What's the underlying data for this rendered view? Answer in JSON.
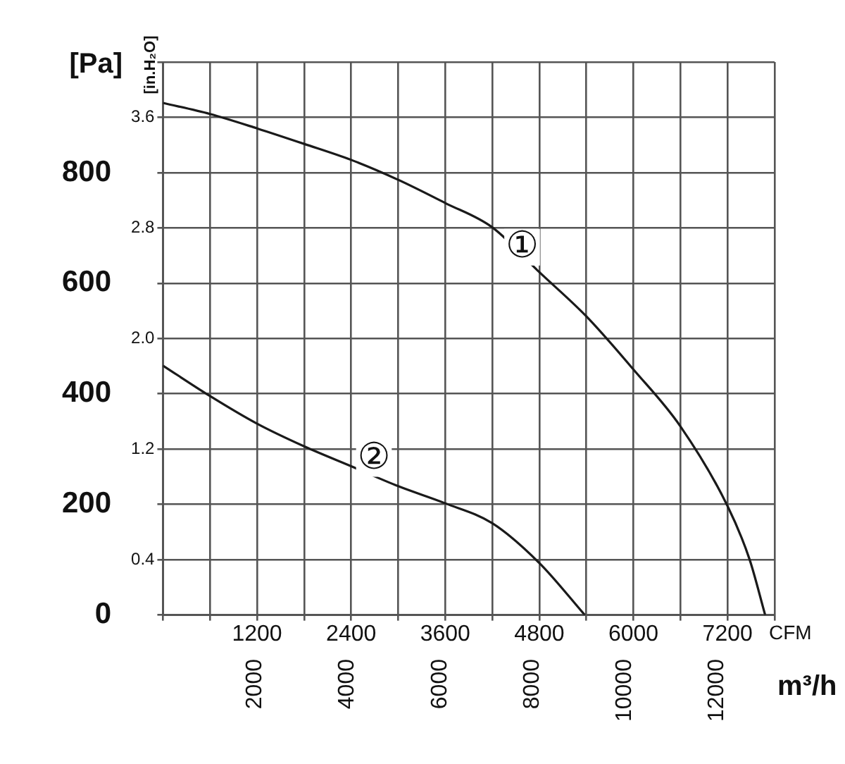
{
  "chart_data": {
    "type": "line",
    "xlabel": "CFM",
    "x2label": "m³/h",
    "ylabel": "[Pa]",
    "y2label": "[in.H₂O]",
    "series": [
      {
        "color": "#1a1a1a",
        "x": [
          0,
          600,
          1200,
          1800,
          2400,
          3000,
          3600,
          4200,
          4800,
          5400,
          6000,
          6600,
          7200,
          7480,
          7680
        ],
        "values": [
          926,
          906,
          880,
          852,
          823,
          787,
          745,
          701,
          620,
          540,
          444,
          341,
          197,
          101,
          0
        ]
      },
      {
        "color": "#1a1a1a",
        "x": [
          0,
          600,
          1200,
          1800,
          2400,
          3000,
          3600,
          4200,
          4800,
          5380
        ],
        "values": [
          451,
          396,
          346,
          305,
          269,
          233,
          202,
          166,
          94,
          0
        ]
      }
    ],
    "annotations": [
      {
        "text": "①",
        "x": 4580,
        "y": 665
      },
      {
        "text": "②",
        "x": 2690,
        "y": 283
      }
    ],
    "xlim": [
      0,
      7800
    ],
    "xticks": [
      {
        "value": 0,
        "label": null
      },
      {
        "value": 600,
        "label": null
      },
      1200,
      {
        "value": 1800,
        "label": null
      },
      2400,
      {
        "value": 3000,
        "label": null
      },
      3600,
      {
        "value": 4200,
        "label": null
      },
      4800,
      {
        "value": 5400,
        "label": null
      },
      6000,
      {
        "value": 6600,
        "label": null
      },
      7200,
      {
        "value": 7800,
        "label": null
      }
    ],
    "x2lim": [
      0,
      13250
    ],
    "x2ticks": [
      2000,
      4000,
      6000,
      8000,
      10000,
      12000
    ],
    "ylim": [
      0,
      1000
    ],
    "yticks": [
      0,
      200,
      400,
      600,
      800
    ],
    "y2lim": [
      0,
      4
    ],
    "y2ticks": [
      {
        "value": 0,
        "label": null
      },
      0.4,
      {
        "value": 0.8,
        "label": null
      },
      1.2,
      {
        "value": 1.6,
        "label": null
      },
      {
        "value": 2,
        "label": "2.0"
      },
      {
        "value": 2.4,
        "label": null
      },
      2.8,
      {
        "value": 3.2,
        "label": null
      },
      3.6,
      {
        "value": 4,
        "label": null
      }
    ],
    "grid": true,
    "legend": false,
    "marker": "none",
    "line_style": "solid"
  }
}
